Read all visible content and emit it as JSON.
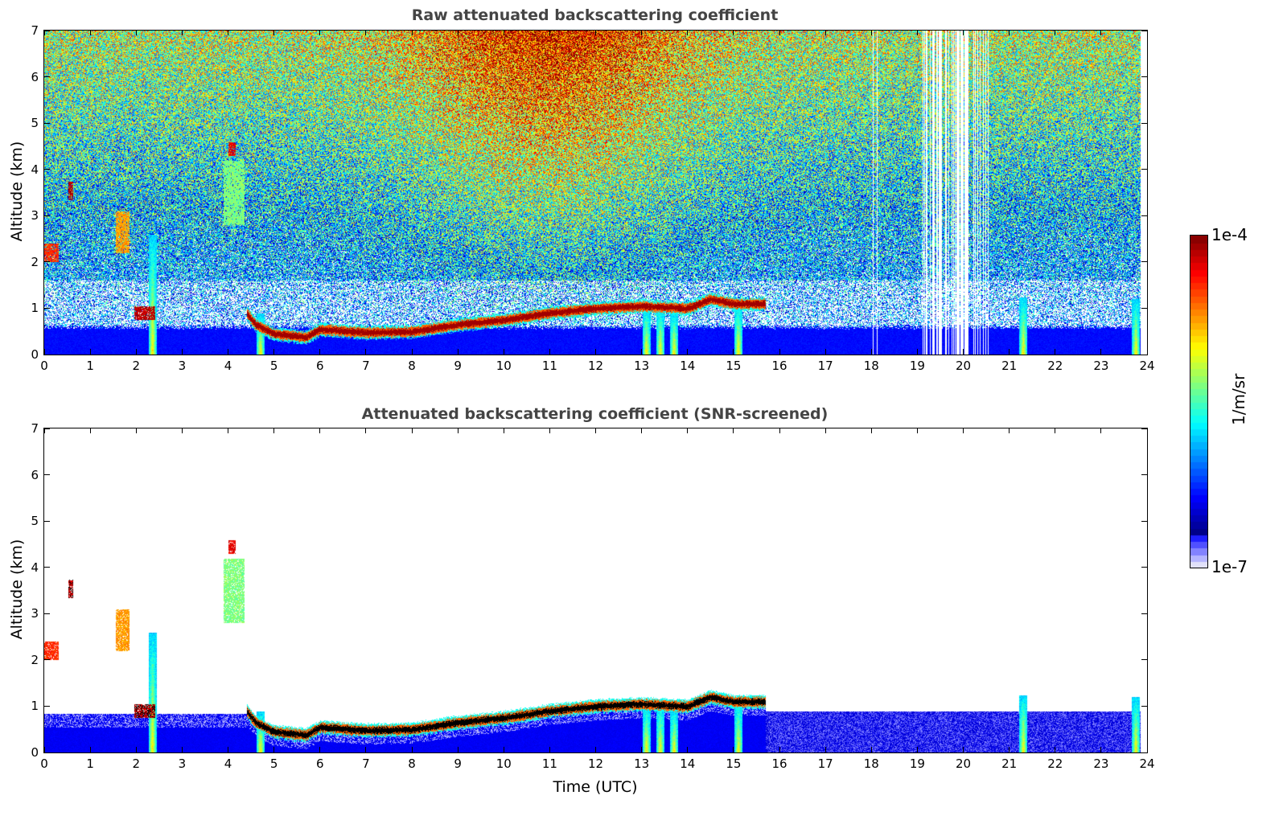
{
  "chart_data": [
    {
      "type": "heatmap",
      "title": "Raw attenuated backscattering coefficient",
      "xlabel": "",
      "ylabel": "Altitude (km)",
      "xlim": [
        0,
        24
      ],
      "ylim": [
        0,
        7
      ],
      "xticks": [
        0,
        1,
        2,
        3,
        4,
        5,
        6,
        7,
        8,
        9,
        10,
        11,
        12,
        13,
        14,
        15,
        16,
        17,
        18,
        19,
        20,
        21,
        22,
        23,
        24
      ],
      "yticks": [
        0,
        1,
        2,
        3,
        4,
        5,
        6,
        7
      ],
      "screened": false,
      "data_gaps_hours": [
        [
          18.0,
          18.2
        ],
        [
          19.1,
          20.6
        ]
      ]
    },
    {
      "type": "heatmap",
      "title": "Attenuated backscattering coefficient (SNR-screened)",
      "xlabel": "Time (UTC)",
      "ylabel": "Altitude (km)",
      "xlim": [
        0,
        24
      ],
      "ylim": [
        0,
        7
      ],
      "xticks": [
        0,
        1,
        2,
        3,
        4,
        5,
        6,
        7,
        8,
        9,
        10,
        11,
        12,
        13,
        14,
        15,
        16,
        17,
        18,
        19,
        20,
        21,
        22,
        23,
        24
      ],
      "yticks": [
        0,
        1,
        2,
        3,
        4,
        5,
        6,
        7
      ],
      "screened": true
    }
  ],
  "features": {
    "cloud_layer_km": {
      "time": [
        4.4,
        4.6,
        5.0,
        5.7,
        6.0,
        7.0,
        8.0,
        9.0,
        10.0,
        11.0,
        12.0,
        13.0,
        14.0,
        14.5,
        15.0,
        15.7
      ],
      "height": [
        0.9,
        0.65,
        0.45,
        0.38,
        0.55,
        0.48,
        0.5,
        0.65,
        0.75,
        0.9,
        1.0,
        1.05,
        1.0,
        1.2,
        1.1,
        1.1
      ]
    },
    "clouds": [
      {
        "t": [
          0.0,
          0.3
        ],
        "h": [
          2.0,
          2.4
        ],
        "level": 0.85
      },
      {
        "t": [
          0.52,
          0.62
        ],
        "h": [
          3.35,
          3.75
        ],
        "level": 0.95
      },
      {
        "t": [
          1.55,
          1.85
        ],
        "h": [
          2.2,
          3.1
        ],
        "level": 0.75
      },
      {
        "t": [
          1.95,
          2.4
        ],
        "h": [
          0.75,
          1.05
        ],
        "level": 0.95
      },
      {
        "t": [
          4.0,
          4.15
        ],
        "h": [
          4.3,
          4.6
        ],
        "level": 0.9
      },
      {
        "t": [
          3.9,
          4.35
        ],
        "h": [
          2.8,
          4.2
        ],
        "level": 0.55
      }
    ],
    "precip_columns": [
      {
        "t": 2.35,
        "top": 2.6
      },
      {
        "t": 4.7,
        "top": 0.9
      },
      {
        "t": 13.1,
        "top": 1.0
      },
      {
        "t": 13.4,
        "top": 1.0
      },
      {
        "t": 13.7,
        "top": 0.9
      },
      {
        "t": 15.1,
        "top": 1.1
      },
      {
        "t": 21.3,
        "top": 1.25
      },
      {
        "t": 23.75,
        "top": 1.2
      }
    ]
  },
  "colorbar": {
    "label": "1/m/sr",
    "min_label": "1e-7",
    "max_label": "1e-4",
    "scale": "log",
    "range": [
      1e-07,
      0.0001
    ]
  }
}
